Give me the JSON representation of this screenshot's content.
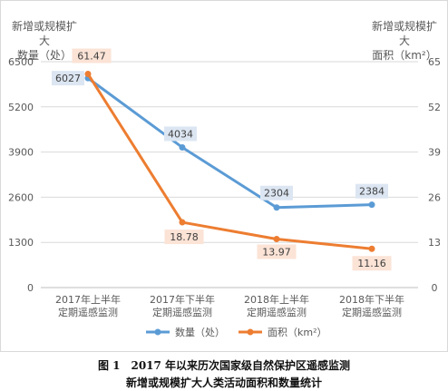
{
  "chart_data": {
    "type": "line",
    "categories": [
      [
        "2017年上半年",
        "定期遥感监测"
      ],
      [
        "2017年下半年",
        "定期遥感监测"
      ],
      [
        "2018年上半年",
        "定期遥感监测"
      ],
      [
        "2018年下半年",
        "定期遥感监测"
      ]
    ],
    "series": [
      {
        "name": "数量（处）",
        "axis": "left",
        "color": "#5b9bd5",
        "values": [
          6027,
          4034,
          2304,
          2384
        ],
        "labels": [
          "6027",
          "4034",
          "2304",
          "2384"
        ],
        "label_bg": "#dce6f2"
      },
      {
        "name": "面积（km²）",
        "axis": "right",
        "color": "#ed7d31",
        "values": [
          61.47,
          18.78,
          13.97,
          11.16
        ],
        "labels": [
          "61.47",
          "18.78",
          "13.97",
          "11.16"
        ],
        "label_bg": "#fbe3d6"
      }
    ],
    "y_left": {
      "title": [
        "新增或规模扩大",
        "数量（处）"
      ],
      "ticks": [
        "0",
        "1300",
        "2600",
        "3900",
        "5200",
        "6500"
      ],
      "ylim": [
        0,
        6500
      ]
    },
    "y_right": {
      "title": [
        "新增或规模扩大",
        "面积（km²）"
      ],
      "ticks": [
        "0",
        "13",
        "26",
        "39",
        "52",
        "65"
      ],
      "ylim": [
        0,
        65
      ]
    },
    "grid": true,
    "legend": "bottom"
  },
  "caption": {
    "line1": "图 1　2017 年以来历次国家级自然保护区遥感监测",
    "line2": "新增或规模扩大人类活动面积和数量统计"
  }
}
